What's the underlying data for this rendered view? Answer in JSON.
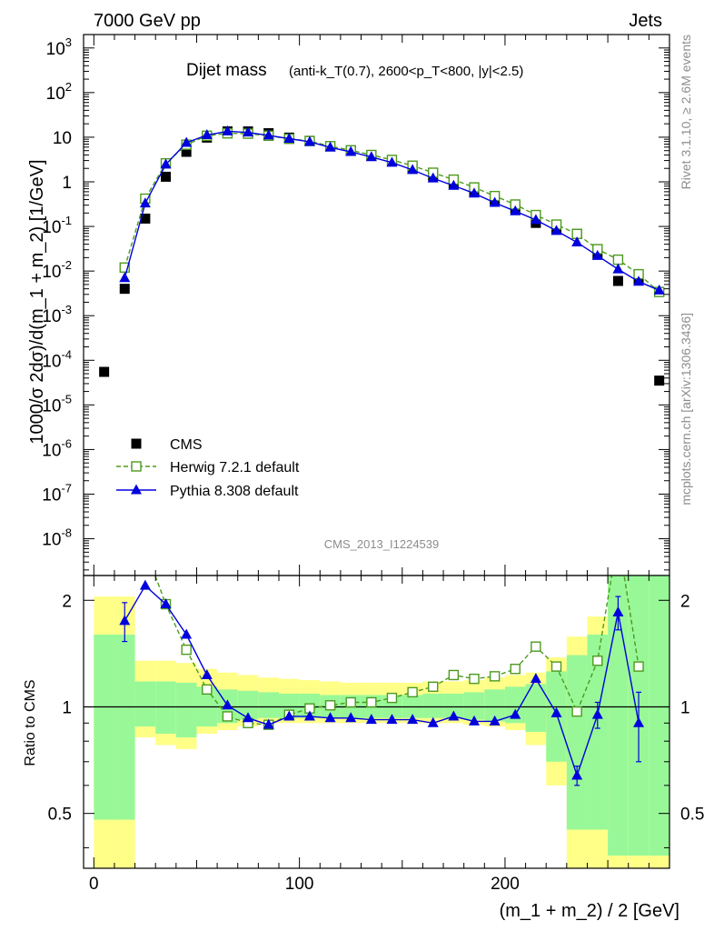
{
  "header": {
    "left": "7000 GeV pp",
    "right": "Jets"
  },
  "side_labels": {
    "rivet": "Rivet 3.1.10, ≥ 2.6M events",
    "mcplots": "mcplots.cern.ch [arXiv:1306.3436]"
  },
  "analysis_id": "CMS_2013_I1224539",
  "colors": {
    "cms": "#000000",
    "herwig": "#4d9a1e",
    "pythia": "#0000dd",
    "band_outer": "#ffff88",
    "band_inner": "#98f898"
  },
  "chart_data": [
    {
      "type": "scatter",
      "panel": "main",
      "title": "Dijet mass",
      "title_detail": "(anti-k_T(0.7), 2600<p_T<800, |y|<2.5)",
      "ylabel": "1000/σ 2dσ)/d(m_1 + m_2) [1/GeV]",
      "y_scale": "log",
      "ylim": [
        1.5e-09,
        2000
      ],
      "xlim": [
        -5,
        280
      ],
      "y_ticks": [
        "10^-8",
        "10^-7",
        "10^-6",
        "10^-5",
        "10^-4",
        "10^-3",
        "10^-2",
        "10^-1",
        "1",
        "10",
        "10^2",
        "10^3"
      ],
      "legend_position": "lower-left",
      "series": [
        {
          "name": "CMS",
          "marker": "square",
          "color": "#000000",
          "x": [
            5,
            15,
            25,
            35,
            45,
            55,
            65,
            75,
            85,
            95,
            105,
            115,
            125,
            135,
            145,
            155,
            165,
            175,
            185,
            195,
            205,
            215,
            225,
            235,
            245,
            255,
            265,
            275
          ],
          "y": [
            5.5e-05,
            0.004,
            0.15,
            1.3,
            4.7,
            9.8,
            13.5,
            13.5,
            12.3,
            9.8,
            8.3,
            6.2,
            5.0,
            3.9,
            2.9,
            2.0,
            1.35,
            0.9,
            0.6,
            0.39,
            0.25,
            0.12,
            0.085,
            0.068,
            0.024,
            0.006,
            0.0065,
            3.5e-05
          ]
        },
        {
          "name": "Herwig 7.2.1 default",
          "marker": "open-square",
          "line": "dashed",
          "color": "#4d9a1e",
          "x": [
            15,
            25,
            35,
            45,
            55,
            65,
            75,
            85,
            95,
            105,
            115,
            125,
            135,
            145,
            155,
            165,
            175,
            185,
            195,
            205,
            215,
            225,
            235,
            245,
            255,
            265,
            275
          ],
          "y": [
            0.012,
            0.42,
            2.6,
            6.8,
            10.8,
            12.2,
            12.0,
            10.8,
            9.2,
            8.2,
            6.3,
            5.1,
            4.0,
            3.1,
            2.3,
            1.6,
            1.12,
            0.75,
            0.48,
            0.31,
            0.18,
            0.11,
            0.068,
            0.031,
            0.018,
            0.0085,
            0.0034
          ]
        },
        {
          "name": "Pythia 8.308 default",
          "marker": "triangle",
          "line": "solid",
          "color": "#0000dd",
          "x": [
            15,
            25,
            35,
            45,
            55,
            65,
            75,
            85,
            95,
            105,
            115,
            125,
            135,
            145,
            155,
            165,
            175,
            185,
            195,
            205,
            215,
            225,
            235,
            245,
            255,
            265,
            275
          ],
          "y": [
            0.007,
            0.33,
            2.45,
            7.5,
            11.2,
            13.6,
            12.8,
            11.0,
            9.3,
            7.9,
            5.9,
            4.7,
            3.6,
            2.7,
            1.85,
            1.2,
            0.82,
            0.55,
            0.34,
            0.22,
            0.14,
            0.08,
            0.044,
            0.022,
            0.011,
            0.0058,
            0.0037
          ]
        }
      ]
    },
    {
      "type": "line",
      "panel": "ratio",
      "ylabel": "Ratio to CMS",
      "ylim": [
        0.35,
        2.35
      ],
      "xlim": [
        -5,
        280
      ],
      "xlabel": "(m_1 + m_2) / 2 [GeV]",
      "x_ticks": [
        0,
        100,
        200
      ],
      "y_ticks": [
        0.5,
        1,
        2
      ],
      "reference": 1,
      "bands": {
        "bin_edges": [
          0,
          10,
          20,
          30,
          40,
          50,
          60,
          70,
          80,
          90,
          100,
          110,
          120,
          130,
          140,
          150,
          160,
          170,
          180,
          190,
          200,
          210,
          220,
          230,
          240,
          250,
          260,
          270,
          280
        ],
        "outer_lo": [
          0.35,
          0.35,
          0.82,
          0.78,
          0.76,
          0.84,
          0.86,
          0.88,
          0.9,
          0.9,
          0.9,
          0.9,
          0.9,
          0.9,
          0.9,
          0.9,
          0.9,
          0.9,
          0.89,
          0.88,
          0.86,
          0.78,
          0.6,
          0.35,
          0.35,
          0.35,
          0.35,
          0.35
        ],
        "outer_hi": [
          2.05,
          2.05,
          1.35,
          1.35,
          1.33,
          1.28,
          1.25,
          1.23,
          1.21,
          1.2,
          1.19,
          1.18,
          1.17,
          1.17,
          1.17,
          1.17,
          1.18,
          1.18,
          1.19,
          1.21,
          1.23,
          1.25,
          1.38,
          1.58,
          1.8,
          2.35,
          2.35,
          2.35
        ],
        "inner_lo": [
          0.48,
          0.48,
          0.88,
          0.84,
          0.82,
          0.88,
          0.9,
          0.92,
          0.93,
          0.93,
          0.93,
          0.93,
          0.93,
          0.93,
          0.93,
          0.93,
          0.93,
          0.93,
          0.92,
          0.91,
          0.9,
          0.85,
          0.7,
          0.45,
          0.45,
          0.38,
          0.38,
          0.38
        ],
        "inner_hi": [
          1.6,
          1.6,
          1.18,
          1.18,
          1.17,
          1.14,
          1.12,
          1.11,
          1.1,
          1.09,
          1.09,
          1.08,
          1.08,
          1.08,
          1.08,
          1.08,
          1.09,
          1.09,
          1.1,
          1.12,
          1.14,
          1.16,
          1.26,
          1.4,
          1.6,
          2.35,
          2.35,
          2.35
        ]
      },
      "series": [
        {
          "name": "Herwig 7.2.1 default",
          "marker": "open-square",
          "line": "dashed",
          "color": "#4d9a1e",
          "x": [
            25,
            35,
            45,
            55,
            65,
            75,
            85,
            95,
            105,
            115,
            125,
            135,
            145,
            155,
            165,
            175,
            185,
            195,
            205,
            215,
            225,
            235,
            245,
            255,
            265
          ],
          "y": [
            2.8,
            1.95,
            1.45,
            1.12,
            0.94,
            0.9,
            0.89,
            0.95,
            0.99,
            1.01,
            1.03,
            1.03,
            1.06,
            1.1,
            1.14,
            1.23,
            1.2,
            1.22,
            1.28,
            1.48,
            1.3,
            0.97,
            1.35,
            3.0,
            1.3
          ]
        },
        {
          "name": "Pythia 8.308 default",
          "marker": "triangle",
          "line": "solid",
          "color": "#0000dd",
          "x": [
            15,
            25,
            35,
            45,
            55,
            65,
            75,
            85,
            95,
            105,
            115,
            125,
            135,
            145,
            155,
            165,
            175,
            185,
            195,
            205,
            215,
            225,
            235,
            245,
            255,
            265
          ],
          "y": [
            1.75,
            2.2,
            1.95,
            1.6,
            1.23,
            1.01,
            0.93,
            0.89,
            0.94,
            0.94,
            0.93,
            0.93,
            0.92,
            0.92,
            0.92,
            0.9,
            0.94,
            0.91,
            0.91,
            0.95,
            1.2,
            0.96,
            0.64,
            0.95,
            1.85,
            0.9
          ],
          "err": [
            0.22,
            0,
            0,
            0,
            0,
            0,
            0,
            0,
            0,
            0,
            0,
            0,
            0,
            0,
            0,
            0,
            0,
            0,
            0,
            0,
            0,
            0,
            0.04,
            0.08,
            0.2,
            0.2
          ]
        }
      ]
    }
  ]
}
